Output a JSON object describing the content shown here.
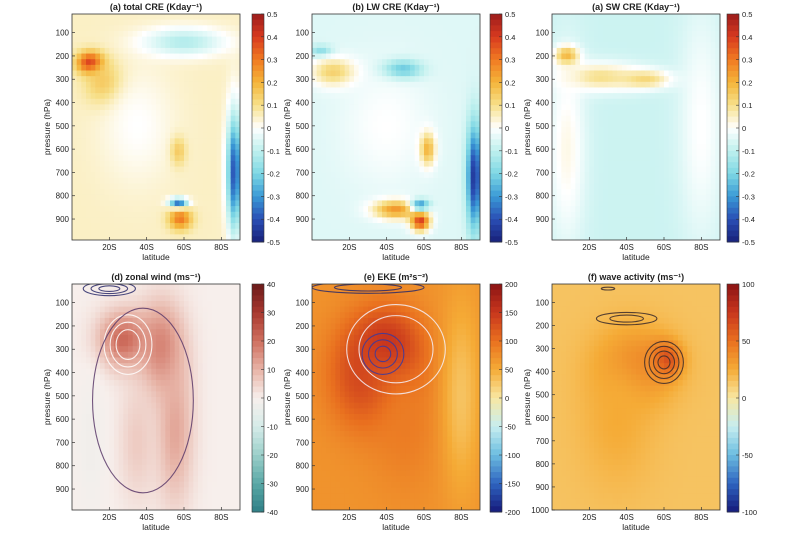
{
  "figure": {
    "ylabel": "pressure (hPa)",
    "xlabel": "latitude"
  },
  "chart_data": [
    {
      "type": "heatmap",
      "title": "(a) total CRE (Kday⁻¹)",
      "xlabel": "latitude",
      "ylabel": "pressure (hPa)",
      "xticks": [
        "20S",
        "40S",
        "60S",
        "80S"
      ],
      "yticks": [
        "100",
        "200",
        "300",
        "400",
        "500",
        "600",
        "700",
        "800",
        "900"
      ],
      "colorbar_ticks": [
        "0.5",
        "0.4",
        "0.3",
        "0.2",
        "0.1",
        "0",
        "-0.1",
        "-0.2",
        "-0.3",
        "-0.4",
        "-0.5"
      ],
      "colormap": [
        "#9b1c1c",
        "#d83a1f",
        "#f07a22",
        "#f4b43a",
        "#f7e08a",
        "#ffffff",
        "#bff0ee",
        "#7fd8e4",
        "#3a9ad6",
        "#2a4fb5",
        "#18207a"
      ],
      "background_value": 0.05,
      "blobs": [
        {
          "lat": 10,
          "p": 230,
          "v": 0.45,
          "rl": 7,
          "rp": 45
        },
        {
          "lat": 18,
          "p": 320,
          "v": 0.2,
          "rl": 10,
          "rp": 90
        },
        {
          "lat": 35,
          "p": 500,
          "v": 0.0,
          "rl": 20,
          "rp": 250
        },
        {
          "lat": 60,
          "p": 140,
          "v": -0.12,
          "rl": 22,
          "rp": 60
        },
        {
          "lat": 58,
          "p": 900,
          "v": 0.3,
          "rl": 6,
          "rp": 45
        },
        {
          "lat": 57,
          "p": 830,
          "v": -0.35,
          "rl": 5,
          "rp": 20
        },
        {
          "lat": 57,
          "p": 610,
          "v": 0.15,
          "rl": 4,
          "rp": 60
        },
        {
          "lat": 87,
          "p": 700,
          "v": -0.4,
          "rl": 4,
          "rp": 250
        }
      ]
    },
    {
      "type": "heatmap",
      "title": "(b) LW CRE (Kday⁻¹)",
      "xlabel": "latitude",
      "ylabel": "pressure (hPa)",
      "xticks": [
        "20S",
        "40S",
        "60S",
        "80S"
      ],
      "yticks": [
        "100",
        "200",
        "300",
        "400",
        "500",
        "600",
        "700",
        "800",
        "900"
      ],
      "colorbar_ticks": [
        "0.5",
        "0.4",
        "0.3",
        "0.2",
        "0.1",
        "0",
        "-0.1",
        "-0.2",
        "-0.3",
        "-0.4",
        "-0.5"
      ],
      "colormap": [
        "#9b1c1c",
        "#d83a1f",
        "#f07a22",
        "#f4b43a",
        "#f7e08a",
        "#ffffff",
        "#bff0ee",
        "#7fd8e4",
        "#3a9ad6",
        "#2a4fb5",
        "#18207a"
      ],
      "background_value": -0.05,
      "blobs": [
        {
          "lat": 5,
          "p": 180,
          "v": -0.2,
          "rl": 6,
          "rp": 25
        },
        {
          "lat": 12,
          "p": 270,
          "v": 0.15,
          "rl": 12,
          "rp": 60
        },
        {
          "lat": 48,
          "p": 260,
          "v": -0.35,
          "rl": 10,
          "rp": 40
        },
        {
          "lat": 40,
          "p": 500,
          "v": 0.0,
          "rl": 24,
          "rp": 260
        },
        {
          "lat": 45,
          "p": 860,
          "v": 0.25,
          "rl": 12,
          "rp": 40
        },
        {
          "lat": 58,
          "p": 910,
          "v": 0.4,
          "rl": 5,
          "rp": 40
        },
        {
          "lat": 58,
          "p": 840,
          "v": -0.3,
          "rl": 5,
          "rp": 25
        },
        {
          "lat": 62,
          "p": 600,
          "v": 0.2,
          "rl": 4,
          "rp": 70
        },
        {
          "lat": 87,
          "p": 720,
          "v": -0.45,
          "rl": 4,
          "rp": 220
        }
      ]
    },
    {
      "type": "heatmap",
      "title": "(a) SW CRE (Kday⁻¹)",
      "xlabel": "latitude",
      "ylabel": "pressure (hPa)",
      "xticks": [
        "20S",
        "40S",
        "60S",
        "80S"
      ],
      "yticks": [
        "100",
        "200",
        "300",
        "400",
        "500",
        "600",
        "700",
        "800",
        "900"
      ],
      "colorbar_ticks": [
        "0.5",
        "0.4",
        "0.3",
        "0.2",
        "0.1",
        "0",
        "-0.1",
        "-0.2",
        "-0.3",
        "-0.4",
        "-0.5"
      ],
      "colormap": [
        "#9b1c1c",
        "#d83a1f",
        "#f07a22",
        "#f4b43a",
        "#f7e08a",
        "#ffffff",
        "#bff0ee",
        "#7fd8e4",
        "#3a9ad6",
        "#2a4fb5",
        "#18207a"
      ],
      "background_value": -0.08,
      "blobs": [
        {
          "lat": 8,
          "p": 200,
          "v": 0.3,
          "rl": 6,
          "rp": 40
        },
        {
          "lat": 25,
          "p": 290,
          "v": 0.1,
          "rl": 22,
          "rp": 60
        },
        {
          "lat": 50,
          "p": 300,
          "v": 0.12,
          "rl": 14,
          "rp": 40
        },
        {
          "lat": 8,
          "p": 600,
          "v": 0.02,
          "rl": 10,
          "rp": 400
        },
        {
          "lat": 80,
          "p": 500,
          "v": 0.0,
          "rl": 12,
          "rp": 500
        }
      ]
    },
    {
      "type": "heatmap",
      "title": "(d) zonal wind (ms⁻¹)",
      "xlabel": "latitude",
      "ylabel": "pressure (hPa)",
      "xticks": [
        "20S",
        "40S",
        "60S",
        "80S"
      ],
      "yticks": [
        "100",
        "200",
        "300",
        "400",
        "500",
        "600",
        "700",
        "800",
        "900"
      ],
      "colorbar_ticks": [
        "40",
        "30",
        "20",
        "10",
        "0",
        "-10",
        "-20",
        "-30",
        "-40"
      ],
      "colormap": [
        "#6a1a1a",
        "#a8382f",
        "#cf6f5f",
        "#e7b3a6",
        "#f7efec",
        "#d6ece9",
        "#9ccfca",
        "#5aa8a6",
        "#2f7f86"
      ],
      "background_value": 0.0,
      "blobs": [
        {
          "lat": 28,
          "p": 260,
          "v": 22,
          "rl": 14,
          "rp": 120
        },
        {
          "lat": 48,
          "p": 300,
          "v": 18,
          "rl": 12,
          "rp": 200
        },
        {
          "lat": 55,
          "p": 650,
          "v": 12,
          "rl": 10,
          "rp": 320
        },
        {
          "lat": 35,
          "p": 700,
          "v": 6,
          "rl": 10,
          "rp": 260
        },
        {
          "lat": 10,
          "p": 700,
          "v": -2,
          "rl": 8,
          "rp": 300
        }
      ],
      "contours": [
        {
          "color": "#ffffff",
          "lat": 30,
          "p": 280,
          "rl": 16,
          "rp": 160,
          "levels": [
            0.4,
            0.6,
            0.8
          ]
        },
        {
          "color": "#5a3a6a",
          "lat": 38,
          "p": 520,
          "rl": 30,
          "rp": 440,
          "levels": [
            0.9
          ]
        },
        {
          "color": "#2a2a6a",
          "lat": 20,
          "p": 40,
          "rl": 14,
          "rp": 30,
          "levels": [
            0.4,
            0.7,
            1.0
          ]
        }
      ]
    },
    {
      "type": "heatmap",
      "title": "(e) EKE (m²s⁻²)",
      "xlabel": "latitude",
      "ylabel": "pressure (hPa)",
      "xticks": [
        "20S",
        "40S",
        "60S",
        "80S"
      ],
      "yticks": [
        "100",
        "200",
        "300",
        "400",
        "500",
        "600",
        "700",
        "800",
        "900"
      ],
      "colorbar_ticks": [
        "200",
        "150",
        "100",
        "50",
        "0",
        "-50",
        "-100",
        "-150",
        "-200"
      ],
      "colormap": [
        "#8b1414",
        "#c8361d",
        "#e9701f",
        "#f5ab36",
        "#f8e7a2",
        "#c7eef0",
        "#6cbde0",
        "#2f64c0",
        "#151a7a"
      ],
      "background_value": 70,
      "blobs": [
        {
          "lat": 40,
          "p": 320,
          "v": 190,
          "rl": 18,
          "rp": 170
        },
        {
          "lat": 30,
          "p": 420,
          "v": 140,
          "rl": 20,
          "rp": 220
        },
        {
          "lat": 50,
          "p": 620,
          "v": 90,
          "rl": 18,
          "rp": 280
        },
        {
          "lat": 80,
          "p": 500,
          "v": 30,
          "rl": 10,
          "rp": 400
        }
      ],
      "contours": [
        {
          "color": "#3a3aa0",
          "lat": 38,
          "p": 320,
          "rl": 14,
          "rp": 110,
          "levels": [
            0.3,
            0.55,
            0.8
          ]
        },
        {
          "color": "#f4f0f8",
          "lat": 45,
          "p": 300,
          "rl": 22,
          "rp": 160,
          "levels": [
            0.9,
            1.2
          ]
        },
        {
          "color": "#2a2a6a",
          "lat": 30,
          "p": 35,
          "rl": 30,
          "rp": 25,
          "levels": [
            0.6,
            1.0
          ]
        }
      ]
    },
    {
      "type": "heatmap",
      "title": "(f) wave activity (ms⁻¹)",
      "xlabel": "latitude",
      "ylabel": "pressure (hPa)",
      "xticks": [
        "20S",
        "40S",
        "60S",
        "80S"
      ],
      "yticks": [
        "100",
        "200",
        "300",
        "400",
        "500",
        "600",
        "700",
        "800",
        "900",
        "1000"
      ],
      "colorbar_ticks": [
        "100",
        "50",
        "0",
        "-50",
        "-100"
      ],
      "colormap": [
        "#8b1414",
        "#c8361d",
        "#e9701f",
        "#f5ab36",
        "#f8e7a2",
        "#c7eef0",
        "#6cbde0",
        "#2f64c0",
        "#151a7a"
      ],
      "background_value": 15,
      "blobs": [
        {
          "lat": 60,
          "p": 350,
          "v": 90,
          "rl": 8,
          "rp": 70
        },
        {
          "lat": 45,
          "p": 380,
          "v": 45,
          "rl": 20,
          "rp": 160
        },
        {
          "lat": 35,
          "p": 600,
          "v": 25,
          "rl": 20,
          "rp": 300
        }
      ],
      "contours": [
        {
          "color": "#3a2a2a",
          "lat": 60,
          "p": 360,
          "rl": 8,
          "rp": 70,
          "levels": [
            0.4,
            0.7,
            1.0,
            1.3
          ]
        },
        {
          "color": "#3a2a2a",
          "lat": 40,
          "p": 170,
          "rl": 18,
          "rp": 30,
          "levels": [
            0.5,
            0.9
          ]
        },
        {
          "color": "#3a2a2a",
          "lat": 30,
          "p": 40,
          "rl": 6,
          "rp": 10,
          "levels": [
            0.6
          ]
        }
      ]
    }
  ]
}
